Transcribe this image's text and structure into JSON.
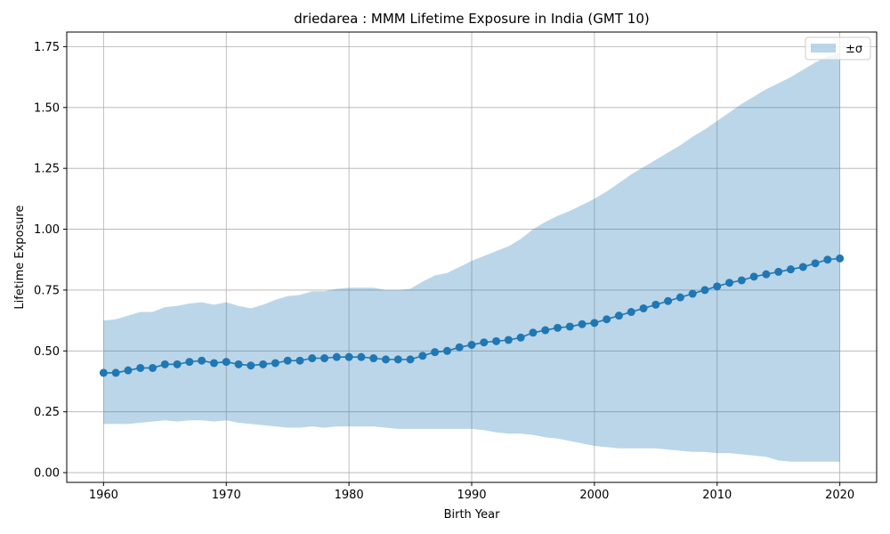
{
  "chart_data": {
    "type": "line",
    "title": "driedarea : MMM Lifetime Exposure in India (GMT 10)",
    "xlabel": "Birth Year",
    "ylabel": "Lifetime Exposure",
    "xlim": [
      1957,
      2023
    ],
    "ylim": [
      -0.04,
      1.81
    ],
    "xticks": [
      1960,
      1970,
      1980,
      1990,
      2000,
      2010,
      2020
    ],
    "xtick_labels": [
      "1960",
      "1970",
      "1980",
      "1990",
      "2000",
      "2010",
      "2020"
    ],
    "yticks": [
      0.0,
      0.25,
      0.5,
      0.75,
      1.0,
      1.25,
      1.5,
      1.75
    ],
    "ytick_labels": [
      "0.00",
      "0.25",
      "0.50",
      "0.75",
      "1.00",
      "1.25",
      "1.50",
      "1.75"
    ],
    "grid": true,
    "legend": {
      "location": "upper right",
      "entries": [
        "±σ"
      ]
    },
    "colors": {
      "line": "#1f77b4",
      "band": "#1f77b4",
      "band_opacity": 0.3,
      "grid": "#b0b0b0"
    },
    "x": [
      1960,
      1961,
      1962,
      1963,
      1964,
      1965,
      1966,
      1967,
      1968,
      1969,
      1970,
      1971,
      1972,
      1973,
      1974,
      1975,
      1976,
      1977,
      1978,
      1979,
      1980,
      1981,
      1982,
      1983,
      1984,
      1985,
      1986,
      1987,
      1988,
      1989,
      1990,
      1991,
      1992,
      1993,
      1994,
      1995,
      1996,
      1997,
      1998,
      1999,
      2000,
      2001,
      2002,
      2003,
      2004,
      2005,
      2006,
      2007,
      2008,
      2009,
      2010,
      2011,
      2012,
      2013,
      2014,
      2015,
      2016,
      2017,
      2018,
      2019,
      2020
    ],
    "series": [
      {
        "type": "line",
        "values": [
          0.41,
          0.41,
          0.42,
          0.43,
          0.43,
          0.445,
          0.445,
          0.455,
          0.46,
          0.45,
          0.455,
          0.445,
          0.44,
          0.445,
          0.45,
          0.46,
          0.46,
          0.47,
          0.47,
          0.475,
          0.475,
          0.475,
          0.47,
          0.465,
          0.465,
          0.465,
          0.48,
          0.495,
          0.5,
          0.515,
          0.525,
          0.535,
          0.54,
          0.545,
          0.555,
          0.575,
          0.585,
          0.595,
          0.6,
          0.61,
          0.615,
          0.63,
          0.645,
          0.66,
          0.675,
          0.69,
          0.705,
          0.72,
          0.735,
          0.75,
          0.765,
          0.78,
          0.79,
          0.805,
          0.815,
          0.825,
          0.835,
          0.845,
          0.86,
          0.875,
          0.88
        ]
      },
      {
        "name": "±σ",
        "type": "area_band",
        "lower": [
          0.2,
          0.2,
          0.2,
          0.205,
          0.21,
          0.215,
          0.21,
          0.215,
          0.215,
          0.21,
          0.215,
          0.205,
          0.2,
          0.195,
          0.19,
          0.185,
          0.185,
          0.19,
          0.185,
          0.19,
          0.19,
          0.19,
          0.19,
          0.185,
          0.18,
          0.18,
          0.18,
          0.18,
          0.18,
          0.18,
          0.18,
          0.175,
          0.165,
          0.16,
          0.16,
          0.155,
          0.145,
          0.14,
          0.13,
          0.12,
          0.11,
          0.105,
          0.1,
          0.1,
          0.1,
          0.1,
          0.095,
          0.09,
          0.085,
          0.085,
          0.08,
          0.08,
          0.075,
          0.07,
          0.065,
          0.05,
          0.045,
          0.045,
          0.045,
          0.045,
          0.045
        ],
        "upper": [
          0.625,
          0.63,
          0.645,
          0.66,
          0.66,
          0.68,
          0.685,
          0.695,
          0.7,
          0.69,
          0.7,
          0.685,
          0.675,
          0.69,
          0.71,
          0.725,
          0.73,
          0.745,
          0.745,
          0.755,
          0.76,
          0.76,
          0.76,
          0.75,
          0.75,
          0.755,
          0.785,
          0.81,
          0.82,
          0.845,
          0.87,
          0.89,
          0.91,
          0.93,
          0.96,
          1.0,
          1.03,
          1.055,
          1.075,
          1.1,
          1.125,
          1.155,
          1.19,
          1.225,
          1.255,
          1.285,
          1.315,
          1.345,
          1.38,
          1.41,
          1.445,
          1.48,
          1.515,
          1.545,
          1.575,
          1.6,
          1.625,
          1.655,
          1.685,
          1.71,
          1.725
        ]
      }
    ]
  }
}
